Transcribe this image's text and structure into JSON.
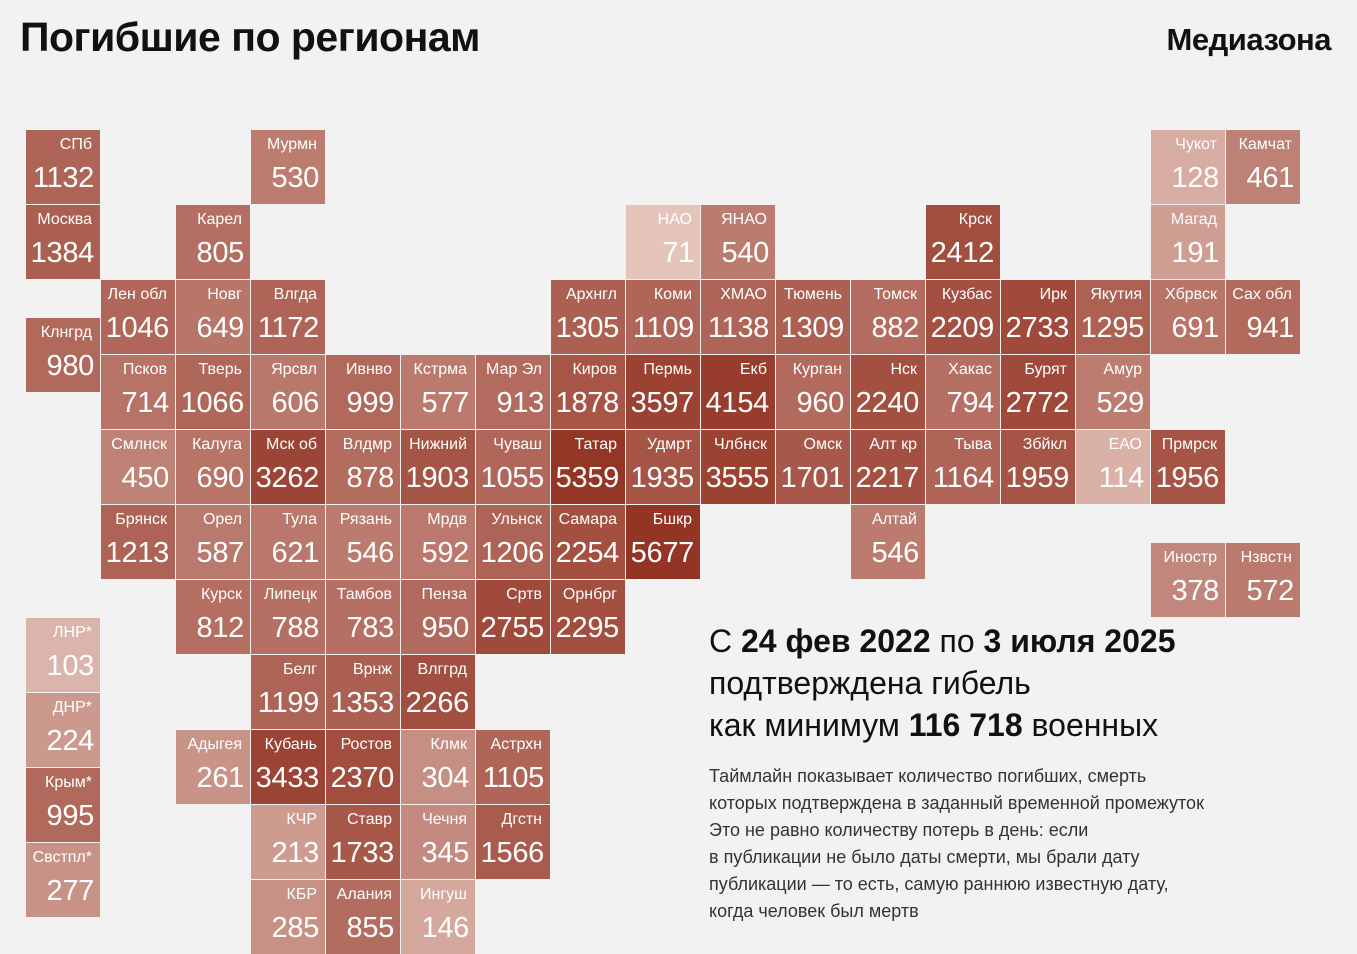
{
  "header": {
    "title": "Погибшие по регионам",
    "brand": "Медиазона"
  },
  "colors": {
    "background": "#f2f2f2"
  },
  "legend_scale": {
    "min_value": 71,
    "max_value": 5677
  },
  "regions": [
    {
      "id": "spb",
      "label": "СПб",
      "value": 1132,
      "col": 0,
      "row": 0
    },
    {
      "id": "moskva",
      "label": "Москва",
      "value": 1384,
      "col": 0,
      "row": 1
    },
    {
      "id": "klngrd",
      "label": "Клнгрд",
      "value": 980,
      "col": 0,
      "row": 2.5
    },
    {
      "id": "murmn",
      "label": "Мурмн",
      "value": 530,
      "col": 3,
      "row": 0
    },
    {
      "id": "karel",
      "label": "Карел",
      "value": 805,
      "col": 2,
      "row": 1
    },
    {
      "id": "nao",
      "label": "НАО",
      "value": 71,
      "col": 8,
      "row": 1
    },
    {
      "id": "yanao",
      "label": "ЯНАО",
      "value": 540,
      "col": 9,
      "row": 1
    },
    {
      "id": "krsk",
      "label": "Крск",
      "value": 2412,
      "col": 12,
      "row": 1
    },
    {
      "id": "chukot",
      "label": "Чукот",
      "value": 128,
      "col": 15,
      "row": 0
    },
    {
      "id": "kamchat",
      "label": "Камчат",
      "value": 461,
      "col": 16,
      "row": 0
    },
    {
      "id": "magad",
      "label": "Магад",
      "value": 191,
      "col": 15,
      "row": 1
    },
    {
      "id": "len-obl",
      "label": "Лен обл",
      "value": 1046,
      "col": 1,
      "row": 2
    },
    {
      "id": "novg",
      "label": "Новг",
      "value": 649,
      "col": 2,
      "row": 2
    },
    {
      "id": "vlgda",
      "label": "Влгда",
      "value": 1172,
      "col": 3,
      "row": 2
    },
    {
      "id": "arhngl",
      "label": "Архнгл",
      "value": 1305,
      "col": 7,
      "row": 2
    },
    {
      "id": "komi",
      "label": "Коми",
      "value": 1109,
      "col": 8,
      "row": 2
    },
    {
      "id": "hmao",
      "label": "ХМАО",
      "value": 1138,
      "col": 9,
      "row": 2
    },
    {
      "id": "tyumen",
      "label": "Тюмень",
      "value": 1309,
      "col": 10,
      "row": 2
    },
    {
      "id": "tomsk",
      "label": "Томск",
      "value": 882,
      "col": 11,
      "row": 2
    },
    {
      "id": "kuzbas",
      "label": "Кузбас",
      "value": 2209,
      "col": 12,
      "row": 2
    },
    {
      "id": "irk",
      "label": "Ирк",
      "value": 2733,
      "col": 13,
      "row": 2
    },
    {
      "id": "yakutiya",
      "label": "Якутия",
      "value": 1295,
      "col": 14,
      "row": 2
    },
    {
      "id": "hbrvsk",
      "label": "Хбрвск",
      "value": 691,
      "col": 15,
      "row": 2
    },
    {
      "id": "sah-obl",
      "label": "Сах обл",
      "value": 941,
      "col": 16,
      "row": 2
    },
    {
      "id": "pskov",
      "label": "Псков",
      "value": 714,
      "col": 1,
      "row": 3
    },
    {
      "id": "tver",
      "label": "Тверь",
      "value": 1066,
      "col": 2,
      "row": 3
    },
    {
      "id": "yarsvl",
      "label": "Ярсвл",
      "value": 606,
      "col": 3,
      "row": 3
    },
    {
      "id": "ivnvo",
      "label": "Ивнво",
      "value": 999,
      "col": 4,
      "row": 3
    },
    {
      "id": "kstrma",
      "label": "Кстрма",
      "value": 577,
      "col": 5,
      "row": 3
    },
    {
      "id": "mar-el",
      "label": "Мар Эл",
      "value": 913,
      "col": 6,
      "row": 3
    },
    {
      "id": "kirov",
      "label": "Киров",
      "value": 1878,
      "col": 7,
      "row": 3
    },
    {
      "id": "perm",
      "label": "Пермь",
      "value": 3597,
      "col": 8,
      "row": 3
    },
    {
      "id": "ekb",
      "label": "Екб",
      "value": 4154,
      "col": 9,
      "row": 3
    },
    {
      "id": "kurgan",
      "label": "Курган",
      "value": 960,
      "col": 10,
      "row": 3
    },
    {
      "id": "nsk",
      "label": "Нск",
      "value": 2240,
      "col": 11,
      "row": 3
    },
    {
      "id": "hakas",
      "label": "Хакас",
      "value": 794,
      "col": 12,
      "row": 3
    },
    {
      "id": "buryat",
      "label": "Бурят",
      "value": 2772,
      "col": 13,
      "row": 3
    },
    {
      "id": "amur",
      "label": "Амур",
      "value": 529,
      "col": 14,
      "row": 3
    },
    {
      "id": "smlnsk",
      "label": "Смлнск",
      "value": 450,
      "col": 1,
      "row": 4
    },
    {
      "id": "kaluga",
      "label": "Калуга",
      "value": 690,
      "col": 2,
      "row": 4
    },
    {
      "id": "msk-ob",
      "label": "Мск об",
      "value": 3262,
      "col": 3,
      "row": 4
    },
    {
      "id": "vldmr",
      "label": "Влдмр",
      "value": 878,
      "col": 4,
      "row": 4
    },
    {
      "id": "nizhniy",
      "label": "Нижний",
      "value": 1903,
      "col": 5,
      "row": 4
    },
    {
      "id": "chuvash",
      "label": "Чуваш",
      "value": 1055,
      "col": 6,
      "row": 4
    },
    {
      "id": "tatar",
      "label": "Татар",
      "value": 5359,
      "col": 7,
      "row": 4
    },
    {
      "id": "udmrt",
      "label": "Удмрт",
      "value": 1935,
      "col": 8,
      "row": 4
    },
    {
      "id": "chlbnsk",
      "label": "Члбнск",
      "value": 3555,
      "col": 9,
      "row": 4
    },
    {
      "id": "omsk",
      "label": "Омск",
      "value": 1701,
      "col": 10,
      "row": 4
    },
    {
      "id": "alt-kr",
      "label": "Алт кр",
      "value": 2217,
      "col": 11,
      "row": 4
    },
    {
      "id": "tyva",
      "label": "Тыва",
      "value": 1164,
      "col": 12,
      "row": 4
    },
    {
      "id": "zbkl",
      "label": "Збйкл",
      "value": 1959,
      "col": 13,
      "row": 4
    },
    {
      "id": "eao",
      "label": "ЕАО",
      "value": 114,
      "col": 14,
      "row": 4
    },
    {
      "id": "prmrsk",
      "label": "Прмрск",
      "value": 1956,
      "col": 15,
      "row": 4
    },
    {
      "id": "bryansk",
      "label": "Брянск",
      "value": 1213,
      "col": 1,
      "row": 5
    },
    {
      "id": "orel",
      "label": "Орел",
      "value": 587,
      "col": 2,
      "row": 5
    },
    {
      "id": "tula",
      "label": "Тула",
      "value": 621,
      "col": 3,
      "row": 5
    },
    {
      "id": "ryazan",
      "label": "Рязань",
      "value": 546,
      "col": 4,
      "row": 5
    },
    {
      "id": "mrdv",
      "label": "Мрдв",
      "value": 592,
      "col": 5,
      "row": 5
    },
    {
      "id": "ulnsk",
      "label": "Ульнск",
      "value": 1206,
      "col": 6,
      "row": 5
    },
    {
      "id": "samara",
      "label": "Самара",
      "value": 2254,
      "col": 7,
      "row": 5
    },
    {
      "id": "bshkr",
      "label": "Бшкр",
      "value": 5677,
      "col": 8,
      "row": 5
    },
    {
      "id": "altay",
      "label": "Алтай",
      "value": 546,
      "col": 11,
      "row": 5
    },
    {
      "id": "inostr",
      "label": "Иностр",
      "value": 378,
      "col": 15,
      "row": 5.5
    },
    {
      "id": "nzvstn",
      "label": "Нзвстн",
      "value": 572,
      "col": 16,
      "row": 5.5
    },
    {
      "id": "kursk",
      "label": "Курск",
      "value": 812,
      "col": 2,
      "row": 6
    },
    {
      "id": "lipetsk",
      "label": "Липецк",
      "value": 788,
      "col": 3,
      "row": 6
    },
    {
      "id": "tambov",
      "label": "Тамбов",
      "value": 783,
      "col": 4,
      "row": 6
    },
    {
      "id": "penza",
      "label": "Пенза",
      "value": 950,
      "col": 5,
      "row": 6
    },
    {
      "id": "srtv",
      "label": "Сртв",
      "value": 2755,
      "col": 6,
      "row": 6
    },
    {
      "id": "ornbrg",
      "label": "Орнбрг",
      "value": 2295,
      "col": 7,
      "row": 6
    },
    {
      "id": "belg",
      "label": "Белг",
      "value": 1199,
      "col": 3,
      "row": 7
    },
    {
      "id": "vrnzh",
      "label": "Врнж",
      "value": 1353,
      "col": 4,
      "row": 7
    },
    {
      "id": "vlggrd",
      "label": "Влггрд",
      "value": 2266,
      "col": 5,
      "row": 7
    },
    {
      "id": "adygeya",
      "label": "Адыгея",
      "value": 261,
      "col": 2,
      "row": 8
    },
    {
      "id": "kuban",
      "label": "Кубань",
      "value": 3433,
      "col": 3,
      "row": 8
    },
    {
      "id": "rostov",
      "label": "Ростов",
      "value": 2370,
      "col": 4,
      "row": 8
    },
    {
      "id": "klmk",
      "label": "Клмк",
      "value": 304,
      "col": 5,
      "row": 8
    },
    {
      "id": "astrhn",
      "label": "Астрхн",
      "value": 1105,
      "col": 6,
      "row": 8
    },
    {
      "id": "kchr",
      "label": "КЧР",
      "value": 213,
      "col": 3,
      "row": 9
    },
    {
      "id": "stavr",
      "label": "Ставр",
      "value": 1733,
      "col": 4,
      "row": 9
    },
    {
      "id": "chechnya",
      "label": "Чечня",
      "value": 345,
      "col": 5,
      "row": 9
    },
    {
      "id": "dgstn",
      "label": "Дгстн",
      "value": 1566,
      "col": 6,
      "row": 9
    },
    {
      "id": "kbr",
      "label": "КБР",
      "value": 285,
      "col": 3,
      "row": 10
    },
    {
      "id": "alaniya",
      "label": "Алания",
      "value": 855,
      "col": 4,
      "row": 10
    },
    {
      "id": "ingush",
      "label": "Ингуш",
      "value": 146,
      "col": 5,
      "row": 10
    },
    {
      "id": "lnr",
      "label": "ЛНР*",
      "value": 103,
      "col": 0,
      "row": 6.5
    },
    {
      "id": "dnr",
      "label": "ДНР*",
      "value": 224,
      "col": 0,
      "row": 7.5
    },
    {
      "id": "krym",
      "label": "Крым*",
      "value": 995,
      "col": 0,
      "row": 8.5
    },
    {
      "id": "svstpl",
      "label": "Свстпл*",
      "value": 277,
      "col": 0,
      "row": 9.5
    }
  ],
  "summary": {
    "p1": "С ",
    "date_from": "24 фев 2022",
    "p2": " по ",
    "date_to": "3 июля 2025",
    "line2": "подтверждена гибель",
    "p3": "как минимум ",
    "total": "116 718",
    "p4": " военных"
  },
  "note": {
    "lines": [
      "Таймлайн показывает количество погибших, смерть",
      "которых подтверждена в заданный временной промежуток",
      "Это не равно количеству потерь в день: если",
      "в публикации не было даты смерти, мы брали дату",
      "публикации — то есть, самую раннюю известную дату,",
      "когда человек был мертв"
    ]
  }
}
